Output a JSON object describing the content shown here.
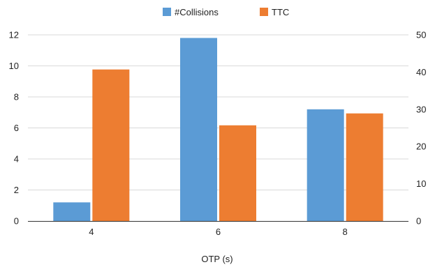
{
  "chart_data": {
    "type": "bar",
    "x_label": "OTP (s)",
    "categories": [
      "4",
      "6",
      "8"
    ],
    "series": [
      {
        "name": "#Collisions",
        "color": "#5B9BD5",
        "axis": "left",
        "values": [
          1.2,
          11.8,
          7.2
        ]
      },
      {
        "name": "TTC",
        "color": "#ED7D31",
        "axis": "right",
        "values": [
          40.7,
          25.7,
          28.9
        ]
      }
    ],
    "y_left": {
      "range": [
        0,
        12
      ],
      "ticks": [
        "0",
        "2",
        "4",
        "6",
        "8",
        "10",
        "12"
      ]
    },
    "y_right": {
      "range": [
        0,
        50
      ],
      "ticks": [
        "0",
        "10",
        "20",
        "30",
        "40",
        "50"
      ]
    },
    "legend_position": "top-center",
    "grid": true
  }
}
